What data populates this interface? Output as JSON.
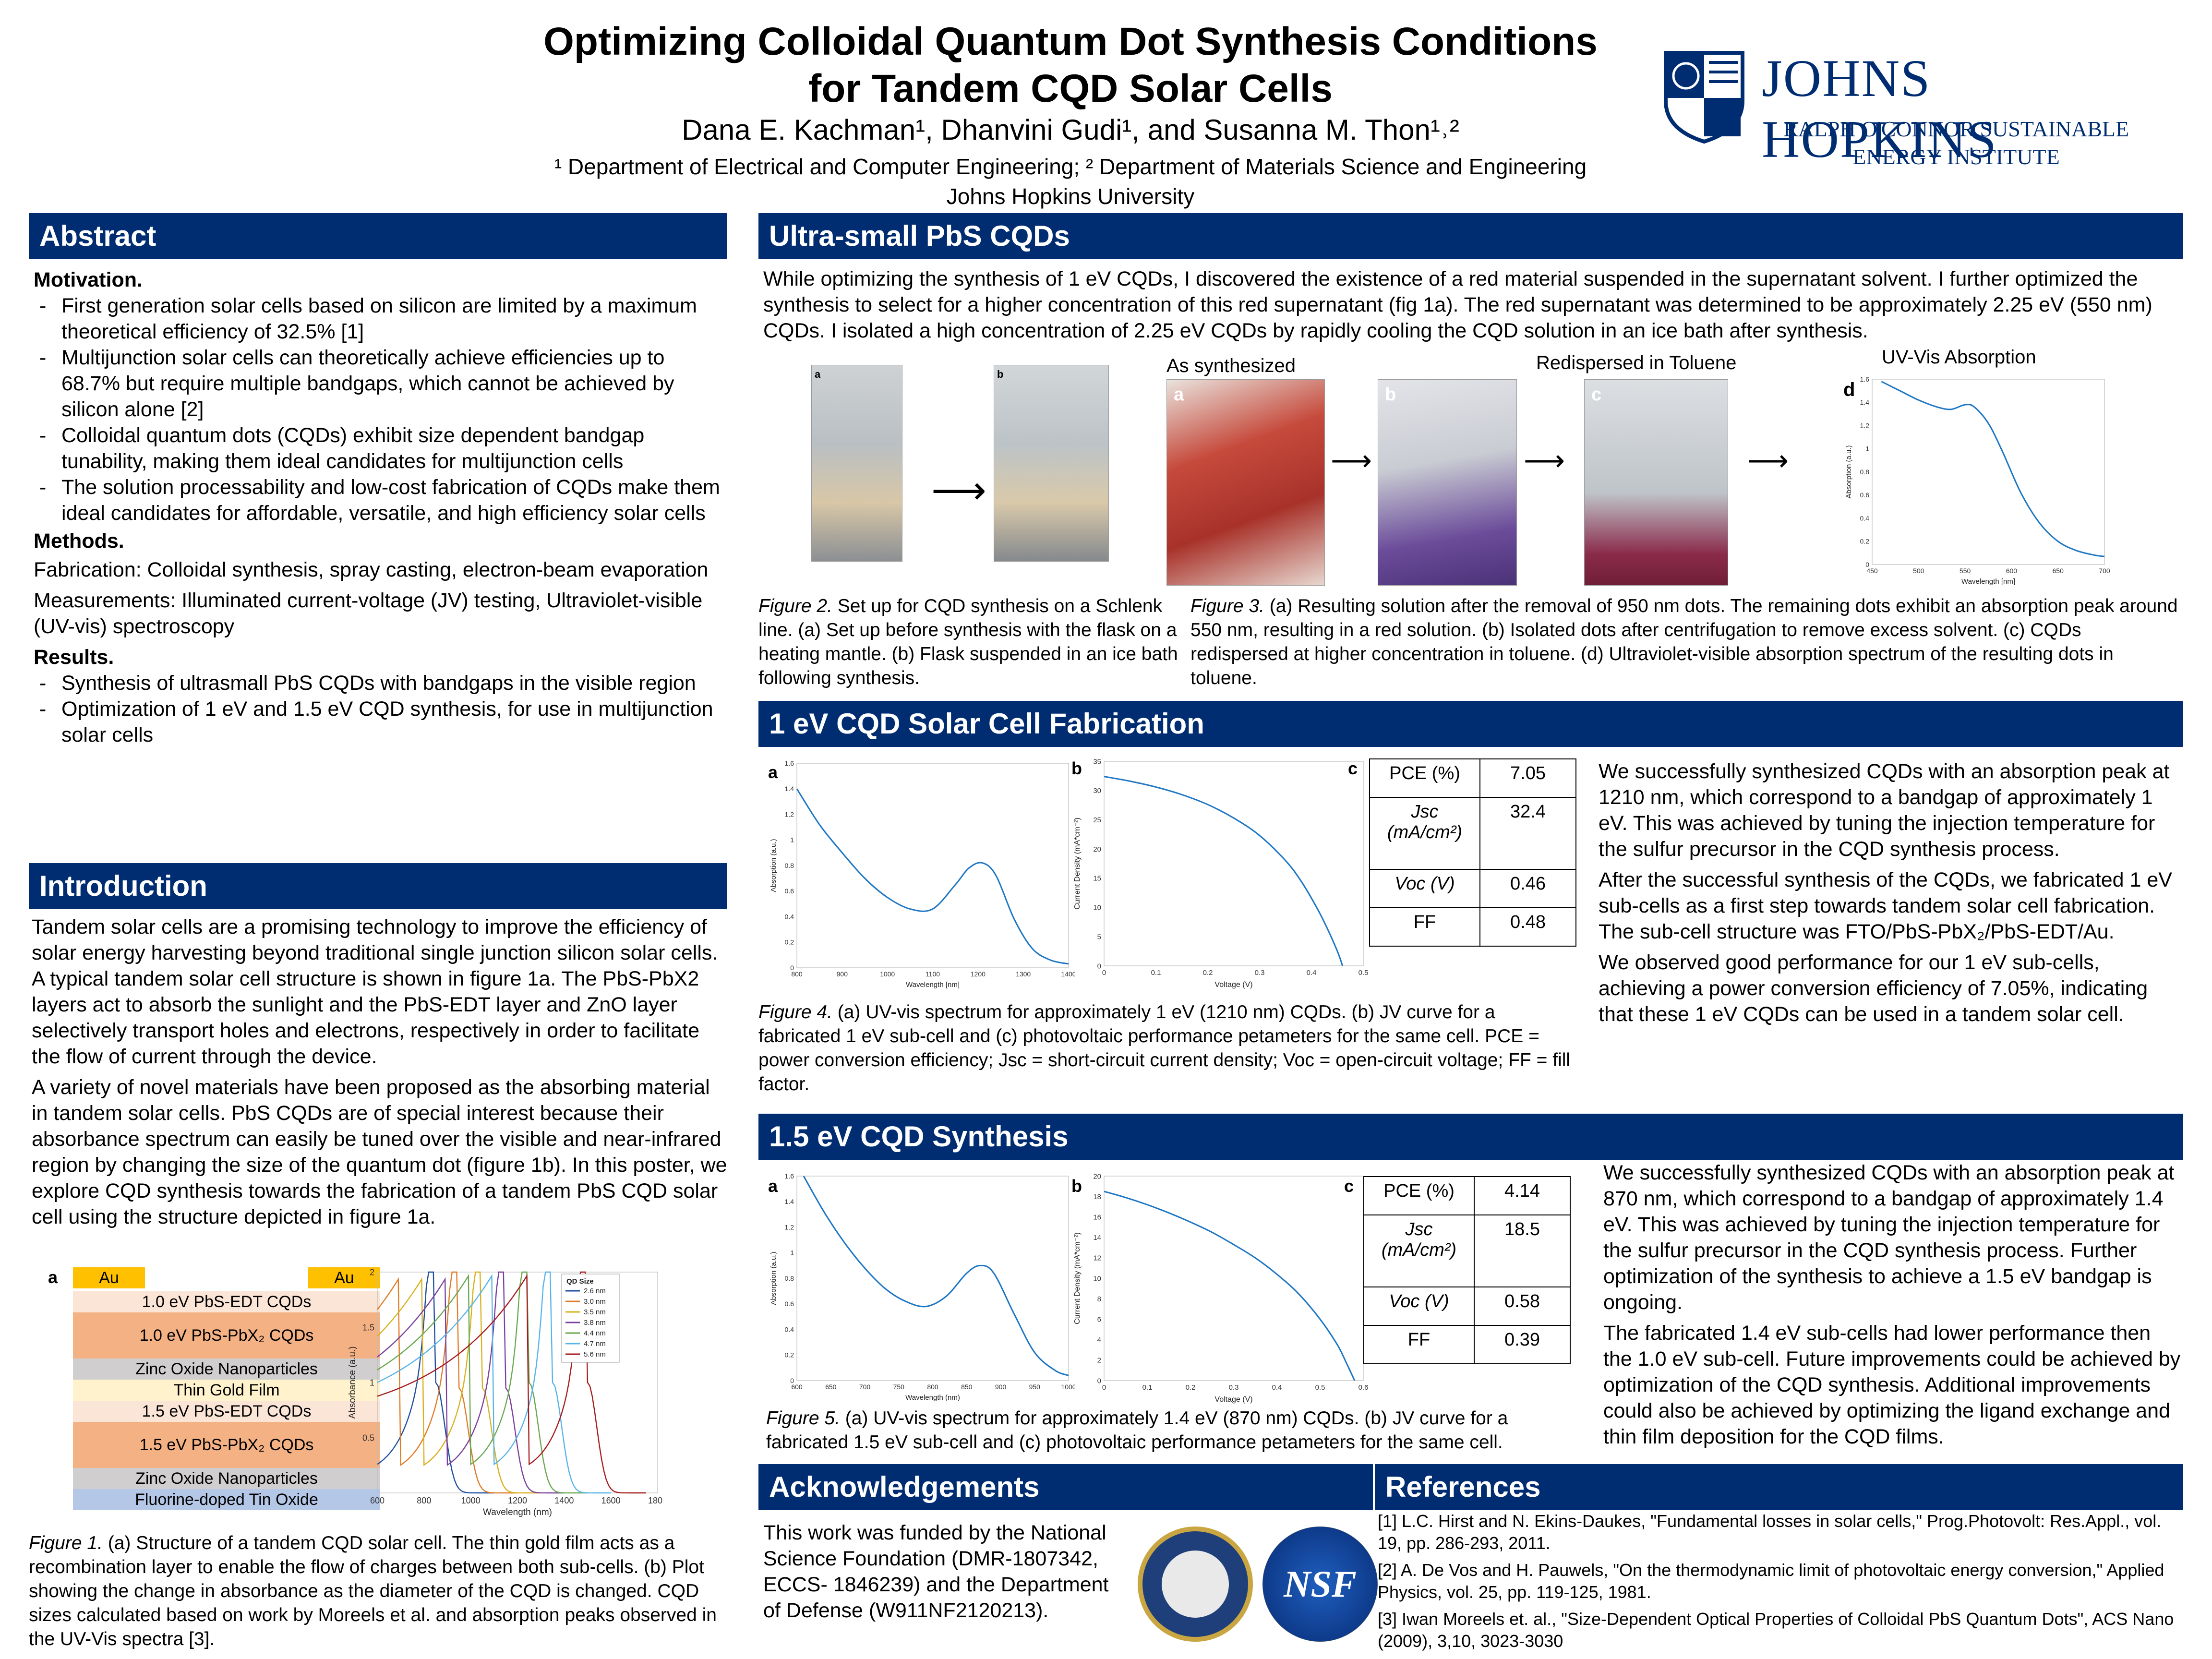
{
  "header": {
    "title_line1": "Optimizing Colloidal Quantum Dot Synthesis Conditions",
    "title_line2": "for Tandem CQD Solar Cells",
    "authors": "Dana E. Kachman¹, Dhanvini Gudi¹, and Susanna M. Thon¹˒²",
    "affil_line1": "¹ Department of Electrical and Computer Engineering; ² Department of Materials Science and Engineering",
    "affil_line2": "Johns Hopkins University",
    "logo_name": "JOHNS HOPKINS",
    "logo_sub_line1": "RALPH O'CONNOR SUSTAINABLE",
    "logo_sub_line2": "ENERGY INSTITUTE"
  },
  "abstract": {
    "heading": "Abstract",
    "motivation_label": "Motivation.",
    "motivation": [
      "First generation solar cells based on silicon are limited by a maximum theoretical efficiency of 32.5% [1]",
      "Multijunction solar cells can theoretically achieve efficiencies up to 68.7% but require multiple bandgaps, which cannot be achieved by silicon alone [2]",
      "Colloidal quantum dots (CQDs) exhibit size dependent bandgap tunability, making them ideal candidates for multijunction cells",
      "The solution processability and low-cost fabrication of CQDs make them ideal candidates for affordable, versatile, and high efficiency solar cells"
    ],
    "methods_label": "Methods.",
    "fabrication": "Fabrication: Colloidal synthesis, spray casting, electron-beam evaporation",
    "measurements": "Measurements: Illuminated current-voltage (JV) testing, Ultraviolet-visible (UV-vis) spectroscopy",
    "results_label": "Results.",
    "results": [
      "Synthesis of ultrasmall PbS CQDs with bandgaps in the visible region",
      "Optimization of 1 eV and 1.5 eV CQD synthesis, for use in multijunction solar cells"
    ]
  },
  "introduction": {
    "heading": "Introduction",
    "p1": "Tandem solar cells are a promising technology to improve the efficiency of solar energy harvesting beyond traditional single junction silicon solar cells. A typical tandem solar cell structure is shown in figure 1a. The PbS-PbX2 layers act to absorb the sunlight and the PbS-EDT layer and ZnO layer selectively transport holes and electrons, respectively in order to facilitate the flow of current through the device.",
    "p2": "A variety of novel materials have been proposed as the absorbing material in tandem solar cells. PbS CQDs are of special interest because their absorbance spectrum can easily be tuned over the visible and near-infrared region by changing the size of the quantum dot (figure 1b). In this poster, we explore CQD synthesis towards the fabrication of a tandem PbS CQD solar cell using the structure depicted in figure 1a.",
    "stack": {
      "label_a": "a",
      "label_b": "b",
      "au": "Au",
      "layers": [
        "1.0 eV PbS-EDT CQDs",
        "1.0 eV PbS-PbX₂ CQDs",
        "Zinc Oxide Nanoparticles",
        "Thin Gold Film",
        "1.5 eV PbS-EDT CQDs",
        "1.5 eV PbS-PbX₂ CQDs",
        "Zinc Oxide Nanoparticles",
        "Fluorine-doped Tin Oxide"
      ],
      "colors": [
        "#FBE5D6",
        "#F4B183",
        "#D0CECE",
        "#FFF2CC",
        "#FBE5D6",
        "#F4B183",
        "#D0CECE",
        "#B4C7E7"
      ],
      "au_color": "#FFC000"
    },
    "fig1_caption_label": "Figure 1.",
    "fig1_caption": " (a) Structure of a tandem CQD solar cell. The thin gold film acts as a recombination layer to enable the flow of charges between both sub-cells. (b) Plot showing the change in absorbance as the diameter of the CQD is changed. CQD sizes calculated based on work by Moreels et al. and absorption peaks observed in the UV-Vis spectra [3]."
  },
  "ultrasmall": {
    "heading": "Ultra-small PbS CQDs",
    "text": "While optimizing the synthesis of 1 eV CQDs, I discovered the existence of a red material suspended in the supernatant solvent. I further optimized the synthesis to select for a higher concentration of this red supernatant (fig 1a). The red supernatant was determined to be approximately 2.25 eV (550 nm) CQDs. I isolated a high concentration of 2.25 eV CQDs by rapidly cooling the CQD solution in an ice bath after synthesis.",
    "label_as_synth": "As synthesized",
    "label_redispersed": "Redispersed in Toluene",
    "label_uvvis": "UV-Vis Absorption",
    "fig2_caption_label": "Figure 2.",
    "fig2_caption": " Set up for CQD synthesis on a Schlenk line. (a) Set up before synthesis with the flask on a heating mantle. (b) Flask suspended in an ice bath following synthesis.",
    "fig3_caption_label": "Figure 3.",
    "fig3_caption": " (a) Resulting solution after the removal of 950 nm dots. The remaining dots exhibit an absorption peak around 550 nm, resulting in a red solution. (b) Isolated dots after centrifugation to remove excess solvent. (c) CQDs redispersed at higher concentration in toluene. (d) Ultraviolet-visible absorption spectrum of the resulting dots in toluene."
  },
  "fab1": {
    "heading": "1 eV CQD Solar Cell Fabrication",
    "p1": "We successfully synthesized CQDs with an absorption peak at 1210 nm, which correspond to a bandgap of approximately 1 eV. This was achieved by tuning the injection temperature for the sulfur precursor in the CQD synthesis process.",
    "p2": "After the successful synthesis of the CQDs, we fabricated 1 eV sub-cells as a first step towards tandem solar cell fabrication. The sub-cell structure was FTO/PbS-PbX₂/PbS-EDT/Au.",
    "p3": "We observed good performance for our 1 eV sub-cells, achieving a power conversion efficiency of 7.05%, indicating that these 1 eV CQDs can be used in a tandem solar cell.",
    "table": [
      [
        "PCE (%)",
        "7.05"
      ],
      [
        "Jsc (mA/cm²)",
        "32.4"
      ],
      [
        "Voc (V)",
        "0.46"
      ],
      [
        "FF",
        "0.48"
      ]
    ],
    "fig4_caption_label": "Figure 4.",
    "fig4_caption": " (a) UV-vis spectrum for approximately 1 eV (1210 nm) CQDs. (b) JV curve for a fabricated 1 eV sub-cell and (c) photovoltaic performance petameters for the same cell. PCE = power conversion efficiency; Jsc = short-circuit current density; Voc = open-circuit voltage; FF = fill factor."
  },
  "syn15": {
    "heading": "1.5 eV CQD Synthesis",
    "p1": "We successfully synthesized CQDs with an absorption peak at 870 nm, which correspond to a bandgap of approximately 1.4 eV. This was achieved by tuning the injection temperature for the sulfur precursor in the CQD synthesis process. Further optimization of the synthesis to achieve a 1.5 eV bandgap is ongoing.",
    "p2": "The fabricated 1.4 eV sub-cells had lower performance then the 1.0 eV sub-cell. Future improvements could be achieved by optimization of the CQD synthesis. Additional improvements could also be achieved by optimizing the ligand exchange and thin film deposition for the CQD films.",
    "table": [
      [
        "PCE (%)",
        "4.14"
      ],
      [
        "Jsc (mA/cm²)",
        "18.5"
      ],
      [
        "Voc (V)",
        "0.58"
      ],
      [
        "FF",
        "0.39"
      ]
    ],
    "fig5_caption_label": "Figure 5.",
    "fig5_caption": " (a) UV-vis spectrum for approximately 1.4 eV (870 nm) CQDs. (b) JV curve for a fabricated 1.5 eV sub-cell and (c) photovoltaic performance petameters for the same cell."
  },
  "ack": {
    "heading": "Acknowledgements",
    "text": "This work was funded by the National Science Foundation (DMR-1807342, ECCS- 1846239) and the Department of Defense (W911NF2120213).",
    "nsf_text": "NSF"
  },
  "refs": {
    "heading": "References",
    "items": [
      "[1] L.C. Hirst and N. Ekins-Daukes, \"Fundamental losses in solar cells,\" Prog.Photovolt: Res.Appl., vol. 19, pp. 286-293, 2011.",
      "[2] A. De Vos and H. Pauwels, \"On the thermodynamic limit of photovoltaic energy conversion,\" Applied Physics, vol. 25, pp. 119-125, 1981.",
      "[3] Iwan Moreels et. al., \"Size-Dependent Optical Properties of Colloidal PbS Quantum Dots\", ACS Nano (2009), 3,10, 3023-3030"
    ]
  },
  "panel_labels": {
    "a": "a",
    "b": "b",
    "c": "c",
    "d": "d"
  },
  "chart_data": [
    {
      "type": "line",
      "id": "fig1b",
      "xlabel": "Wavelength (nm)",
      "ylabel": "Absorbance (a.u.)",
      "xlim": [
        600,
        1800
      ],
      "ylim": [
        0,
        2
      ],
      "xticks": [
        600,
        800,
        1000,
        1200,
        1400,
        1600,
        1800
      ],
      "yticks": [
        0.5,
        1,
        1.5,
        2
      ],
      "legend_title": "QD Size",
      "series": [
        {
          "name": "2.6 nm",
          "color": "#1f4e9e",
          "peak": [
            850,
            1.0
          ]
        },
        {
          "name": "3.0 nm",
          "color": "#e07b28",
          "peak": [
            950,
            0.95
          ]
        },
        {
          "name": "3.5 nm",
          "color": "#d9b11e",
          "peak": [
            1050,
            0.95
          ]
        },
        {
          "name": "3.8 nm",
          "color": "#7b3f9e",
          "peak": [
            1150,
            0.95
          ]
        },
        {
          "name": "4.4 nm",
          "color": "#6aa84f",
          "peak": [
            1250,
            1.0
          ]
        },
        {
          "name": "4.7 nm",
          "color": "#56b4e9",
          "peak": [
            1350,
            1.0
          ]
        },
        {
          "name": "5.6 nm",
          "color": "#a61c1c",
          "peak": [
            1500,
            1.0
          ]
        }
      ]
    },
    {
      "type": "line",
      "id": "fig3d",
      "xlabel": "Wavelength [nm]",
      "ylabel": "Absorption (a.u.)",
      "xlim": [
        450,
        700
      ],
      "ylim": [
        0,
        1.6
      ],
      "xticks": [
        450,
        500,
        550,
        600,
        650,
        700
      ],
      "yticks": [
        0,
        0.2,
        0.4,
        0.6,
        0.8,
        1,
        1.2,
        1.4,
        1.6
      ],
      "x": [
        460,
        480,
        500,
        520,
        535,
        550,
        560,
        575,
        590,
        610,
        630,
        650,
        670,
        690,
        700
      ],
      "y": [
        1.58,
        1.5,
        1.42,
        1.36,
        1.34,
        1.38,
        1.36,
        1.22,
        0.98,
        0.62,
        0.36,
        0.2,
        0.12,
        0.08,
        0.07
      ]
    },
    {
      "type": "line",
      "id": "fig4a",
      "xlabel": "Wavelength [nm]",
      "ylabel": "Absorption (a.u.)",
      "xlim": [
        800,
        1400
      ],
      "ylim": [
        0,
        1.6
      ],
      "xticks": [
        800,
        900,
        1000,
        1100,
        1200,
        1300,
        1400
      ],
      "yticks": [
        0,
        0.2,
        0.4,
        0.6,
        0.8,
        1,
        1.2,
        1.4,
        1.6
      ],
      "x": [
        800,
        850,
        900,
        950,
        1000,
        1050,
        1100,
        1150,
        1180,
        1210,
        1240,
        1280,
        1320,
        1360,
        1400
      ],
      "y": [
        1.4,
        1.12,
        0.9,
        0.7,
        0.55,
        0.46,
        0.46,
        0.65,
        0.78,
        0.82,
        0.72,
        0.38,
        0.15,
        0.06,
        0.03
      ]
    },
    {
      "type": "line",
      "id": "fig4b",
      "xlabel": "Voltage (V)",
      "ylabel": "Current Density (mA*cm⁻²)",
      "xlim": [
        0,
        0.5
      ],
      "ylim": [
        0,
        35
      ],
      "xticks": [
        0,
        0.1,
        0.2,
        0.3,
        0.4,
        0.5
      ],
      "yticks": [
        0,
        5,
        10,
        15,
        20,
        25,
        30,
        35
      ],
      "x": [
        0,
        0.05,
        0.1,
        0.15,
        0.2,
        0.25,
        0.3,
        0.35,
        0.38,
        0.41,
        0.43,
        0.45,
        0.46
      ],
      "y": [
        32.4,
        31.6,
        30.6,
        29.3,
        27.6,
        25.3,
        22.3,
        18.0,
        14.5,
        10.0,
        6.5,
        2.5,
        0
      ]
    },
    {
      "type": "line",
      "id": "fig5a",
      "xlabel": "Wavelength (nm)",
      "ylabel": "Absorption (a.u.)",
      "xlim": [
        600,
        1000
      ],
      "ylim": [
        0,
        1.6
      ],
      "xticks": [
        600,
        650,
        700,
        750,
        800,
        850,
        900,
        950,
        1000
      ],
      "yticks": [
        0,
        0.2,
        0.4,
        0.6,
        0.8,
        1,
        1.2,
        1.4,
        1.6
      ],
      "x": [
        610,
        640,
        670,
        700,
        730,
        760,
        790,
        820,
        850,
        870,
        890,
        920,
        950,
        980,
        1000
      ],
      "y": [
        1.6,
        1.32,
        1.08,
        0.88,
        0.72,
        0.62,
        0.58,
        0.66,
        0.84,
        0.9,
        0.84,
        0.52,
        0.22,
        0.08,
        0.04
      ]
    },
    {
      "type": "line",
      "id": "fig5b",
      "xlabel": "Voltage (V)",
      "ylabel": "Current Density (mA*cm⁻²)",
      "xlim": [
        0,
        0.6
      ],
      "ylim": [
        0,
        20
      ],
      "xticks": [
        0,
        0.1,
        0.2,
        0.3,
        0.4,
        0.5,
        0.6
      ],
      "yticks": [
        0,
        2,
        4,
        6,
        8,
        10,
        12,
        14,
        16,
        18,
        20
      ],
      "x": [
        0,
        0.05,
        0.1,
        0.15,
        0.2,
        0.25,
        0.3,
        0.35,
        0.4,
        0.45,
        0.5,
        0.54,
        0.56,
        0.58
      ],
      "y": [
        18.5,
        17.9,
        17.2,
        16.4,
        15.5,
        14.5,
        13.3,
        12.0,
        10.4,
        8.5,
        6.0,
        3.5,
        1.8,
        0
      ]
    }
  ]
}
